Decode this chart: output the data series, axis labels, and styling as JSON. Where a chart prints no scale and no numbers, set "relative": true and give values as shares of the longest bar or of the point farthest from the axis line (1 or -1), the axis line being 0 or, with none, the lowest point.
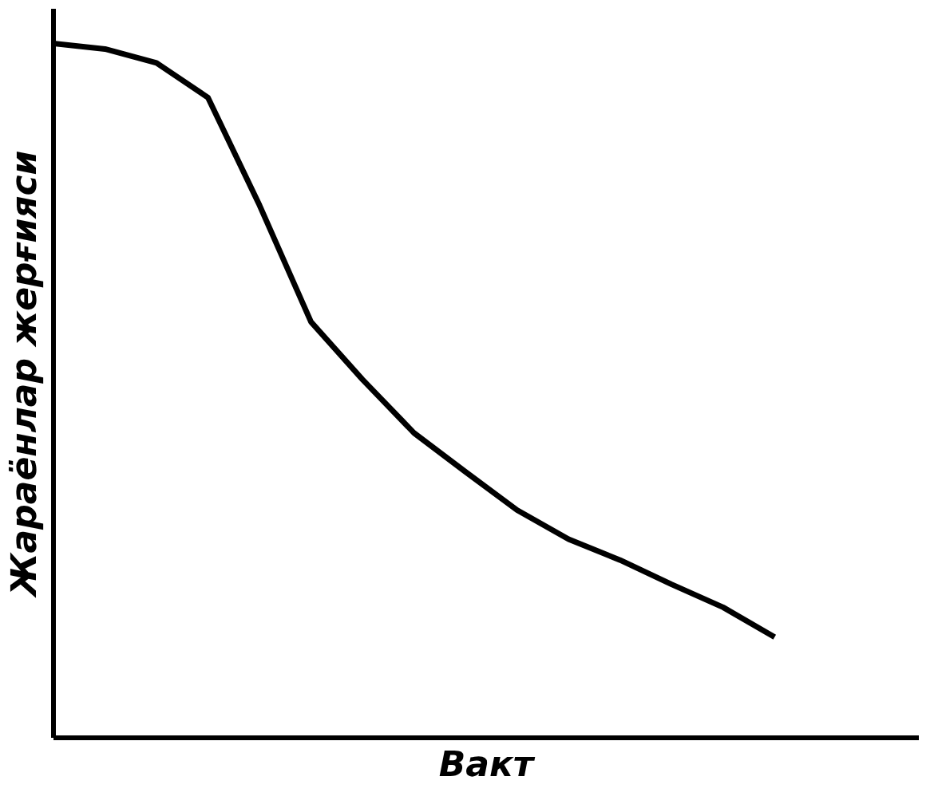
{
  "chart_data": {
    "type": "line",
    "xlabel": "Вакт",
    "ylabel": "Жараёнлар жерғияси",
    "relative": true,
    "categories": [
      null,
      null,
      null,
      null,
      null,
      null,
      null,
      null,
      null,
      null,
      null,
      null,
      null,
      null,
      null
    ],
    "series": [
      {
        "color": "#000000",
        "values": [
          1,
          0.992,
          0.972,
          0.922,
          0.767,
          0.599,
          0.516,
          0.439,
          0.383,
          0.328,
          0.286,
          0.256,
          0.221,
          0.188,
          0.145
        ]
      }
    ]
  }
}
